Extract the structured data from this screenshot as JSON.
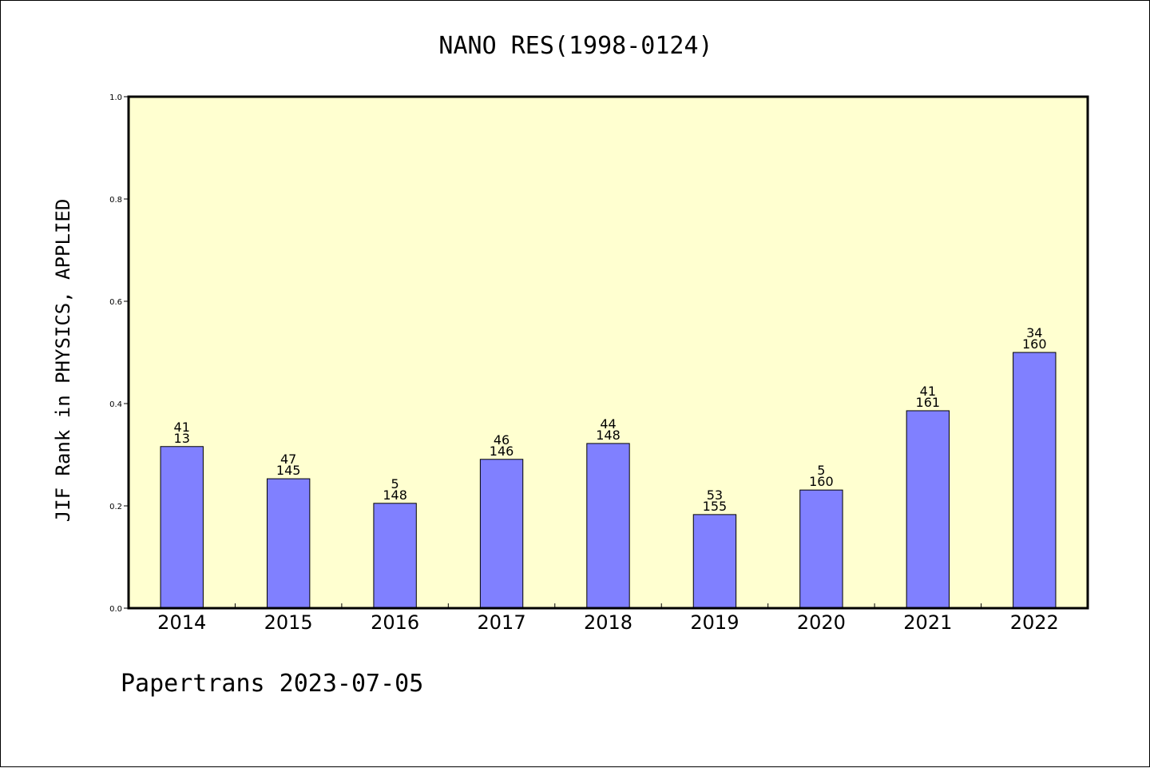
{
  "chart_data": {
    "type": "bar",
    "title": "NANO RES(1998-0124)",
    "xlabel": "",
    "ylabel": "JIF Rank in PHYSICS, APPLIED",
    "categories": [
      "2014",
      "2015",
      "2016",
      "2017",
      "2018",
      "2019",
      "2020",
      "2021",
      "2022"
    ],
    "values": [
      0.316,
      0.253,
      0.205,
      0.291,
      0.322,
      0.183,
      0.231,
      0.386,
      0.5
    ],
    "labels_top": [
      "41",
      "47",
      "5",
      "46",
      "44",
      "53",
      "5",
      "41",
      "34"
    ],
    "labels_bottom": [
      "13",
      "145",
      "148",
      "146",
      "148",
      "155",
      "160",
      "161",
      "160"
    ],
    "ylim": [
      0,
      1.0
    ],
    "yticks": [
      "0.0",
      "0.2",
      "0.4",
      "0.6",
      "0.8",
      "1.0"
    ],
    "grid": false,
    "colors": {
      "plot_background": "#ffffd0",
      "bar_fill": "#8080ff",
      "bar_stroke": "#000000"
    },
    "footer": "Papertrans 2023-07-05"
  }
}
